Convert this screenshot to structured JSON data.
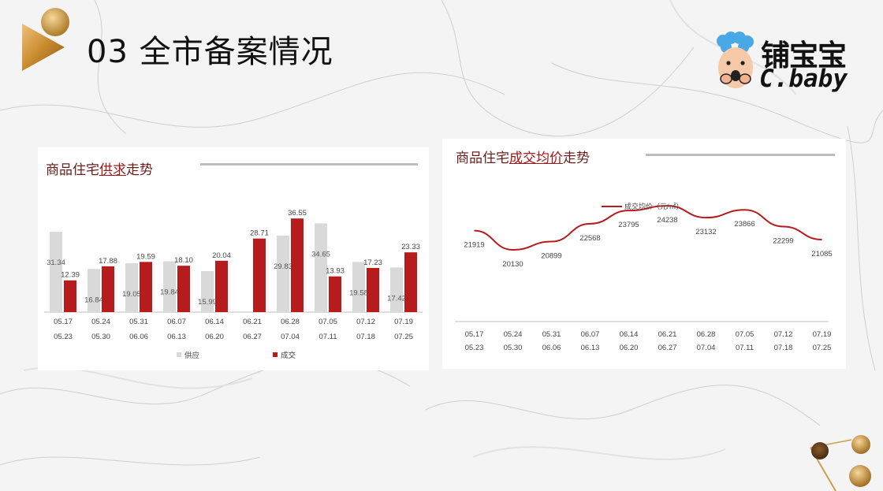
{
  "slide": {
    "title": "03 全市备案情况"
  },
  "logo": {
    "name_cn": "铺宝宝",
    "name_en": "C.baby"
  },
  "colors": {
    "supply": "#d9d9d9",
    "deal": "#b71c1c",
    "price_line": "#b71c1c",
    "title_text": "#6a1f1f"
  },
  "panels": {
    "left": {
      "title_prefix": "商品住宅",
      "title_underlined": "供求",
      "title_suffix": "走势"
    },
    "right": {
      "title_prefix": "商品住宅",
      "title_underlined": "成交均价",
      "title_suffix": "走势"
    }
  },
  "chart_data": [
    {
      "type": "bar",
      "categories": [
        [
          "05.17",
          "05.23"
        ],
        [
          "05.24",
          "05.30"
        ],
        [
          "05.31",
          "06.06"
        ],
        [
          "06.07",
          "06.13"
        ],
        [
          "06.14",
          "06.20"
        ],
        [
          "06.21",
          "06.27"
        ],
        [
          "06.28",
          "07.04"
        ],
        [
          "07.05",
          "07.11"
        ],
        [
          "07.12",
          "07.18"
        ],
        [
          "07.19",
          "07.25"
        ]
      ],
      "series": [
        {
          "name": "供应",
          "values": [
            31.34,
            16.84,
            19.05,
            19.84,
            15.99,
            null,
            29.83,
            34.65,
            19.58,
            17.42
          ],
          "labels": [
            "31.34",
            "16.84",
            "19.05",
            "19.84",
            "15.99",
            "",
            "29.83",
            "34.65",
            "19.58",
            "17.42"
          ]
        },
        {
          "name": "成交",
          "values": [
            12.39,
            17.88,
            19.59,
            18.1,
            20.04,
            28.71,
            36.55,
            13.93,
            17.23,
            23.33
          ],
          "labels": [
            "12.39",
            "17.88",
            "19.59",
            "18.10",
            "20.04",
            "28.71",
            "36.55",
            "13.93",
            "17.23",
            "23.33"
          ]
        }
      ],
      "legend_position": "bottom",
      "grid": false
    },
    {
      "type": "line",
      "categories": [
        [
          "05.17",
          "05.23"
        ],
        [
          "05.24",
          "05.30"
        ],
        [
          "05.31",
          "06.06"
        ],
        [
          "06.07",
          "06.13"
        ],
        [
          "06.14",
          "06.20"
        ],
        [
          "06.21",
          "06.27"
        ],
        [
          "06.28",
          "07.04"
        ],
        [
          "07.05",
          "07.11"
        ],
        [
          "07.12",
          "07.18"
        ],
        [
          "07.19",
          "07.25"
        ]
      ],
      "series": [
        {
          "name": "成交均价（元/㎡）",
          "values": [
            21919,
            20130,
            20899,
            22568,
            23795,
            24238,
            23132,
            23866,
            22299,
            21085
          ],
          "labels": [
            "21919",
            "20130",
            "20899",
            "22568",
            "23795",
            "24238",
            "23132",
            "23866",
            "22299",
            "21085"
          ]
        }
      ],
      "legend_position": "top",
      "grid": false
    }
  ]
}
